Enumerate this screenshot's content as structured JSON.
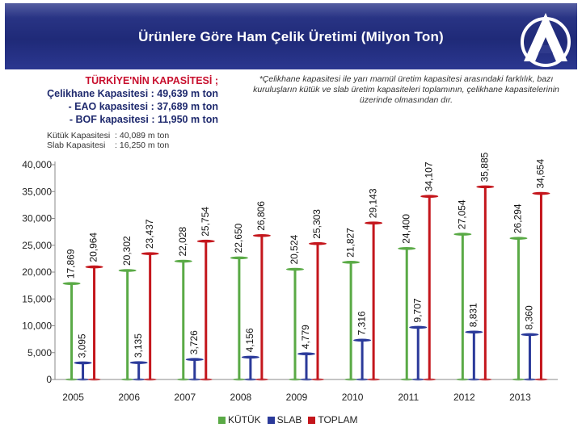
{
  "header": {
    "title": "Ürünlere Göre Ham Çelik Üretimi (Milyon Ton)"
  },
  "notes": {
    "capacity_title": "TÜRKİYE'NİN KAPASİTESİ ;",
    "capacity_total": "Çelikhane Kapasitesi : 49,639 m ton",
    "eao": "- EAO kapasitesi   : 37,689 m ton",
    "bof": "- BOF kapasitesi    : 11,950 m ton",
    "footnote": "*Çelikhane kapasitesi ile yarı mamül üretim kapasitesi arasındaki farklılık, bazı kuruluşların kütük ve slab üretim kapasiteleri toplamının, çelikhane kapasitelerinin üzerinde olmasından dır.",
    "billet_capacity": "Kütük Kapasitesi  : 40,089 m ton",
    "slab_capacity": "Slab Kapasitesi    : 16,250 m ton"
  },
  "chart_data": {
    "type": "bar",
    "title": "Ürünlere Göre Ham Çelik Üretimi (Milyon Ton)",
    "categories": [
      "2005",
      "2006",
      "2007",
      "2008",
      "2009",
      "2010",
      "2011",
      "2012",
      "2013"
    ],
    "series": [
      {
        "name": "KÜTÜK",
        "color": "#5aaa46",
        "values": [
          17.869,
          20.302,
          22.028,
          22.65,
          20.524,
          21.827,
          24.4,
          27.054,
          26.294
        ],
        "labels": [
          "17,869",
          "20,302",
          "22,028",
          "22,650",
          "20,524",
          "21,827",
          "24,400",
          "27,054",
          "26,294"
        ]
      },
      {
        "name": "SLAB",
        "color": "#2b3a9a",
        "values": [
          3.095,
          3.135,
          3.726,
          4.156,
          4.779,
          7.316,
          9.707,
          8.831,
          8.36
        ],
        "labels": [
          "3,095",
          "3,135",
          "3,726",
          "4,156",
          "4,779",
          "7,316",
          "9,707",
          "8,831",
          "8,360"
        ]
      },
      {
        "name": "TOPLAM",
        "color": "#c4161c",
        "values": [
          20.964,
          23.437,
          25.754,
          26.806,
          25.303,
          29.143,
          34.107,
          35.885,
          34.654
        ],
        "labels": [
          "20,964",
          "23,437",
          "25,754",
          "26,806",
          "25,303",
          "29,143",
          "34,107",
          "35,885",
          "34,654"
        ]
      }
    ],
    "yticks": [
      "0",
      "5,000",
      "10,000",
      "15,000",
      "20,000",
      "25,000",
      "30,000",
      "35,000",
      "40,000"
    ],
    "ylim": [
      0,
      40
    ],
    "legend_position": "bottom",
    "legend": [
      "KÜTÜK",
      "SLAB",
      "TOPLAM"
    ]
  }
}
